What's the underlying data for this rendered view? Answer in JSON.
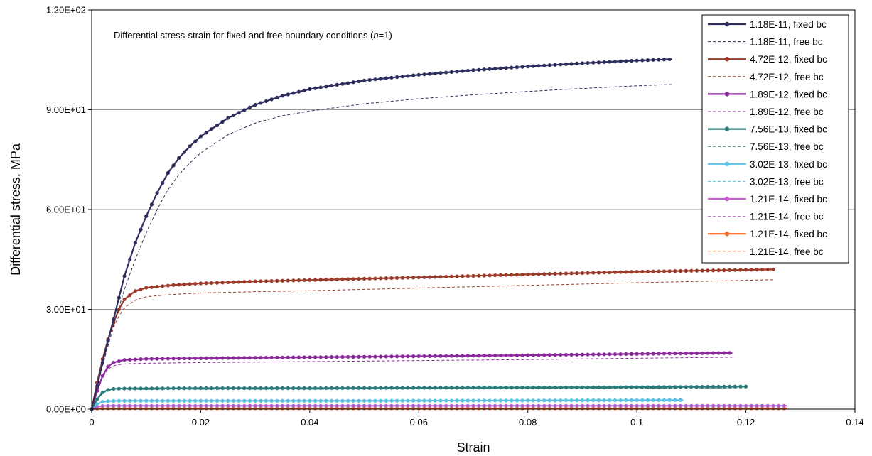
{
  "chart_data": {
    "type": "line",
    "annotation_prefix": "Differential stress-strain for fixed and free boundary conditions (",
    "annotation_italic": "n",
    "annotation_suffix": "=1)",
    "xlabel": "Strain",
    "ylabel": "Differential stress, MPa",
    "xlim": [
      0,
      0.14
    ],
    "ylim": [
      0,
      120
    ],
    "x_ticks": [
      "0",
      "0.02",
      "0.04",
      "0.06",
      "0.08",
      "0.1",
      "0.12",
      "0.14"
    ],
    "y_ticks": [
      "0.00E+00",
      "3.00E+01",
      "6.00E+01",
      "9.00E+01",
      "1.20E+02"
    ],
    "grid": "horizontal",
    "legend_position": "top-right",
    "series": [
      {
        "name": "1.18E-11, fixed bc",
        "style": "solid-markers",
        "color": "#2e2e5e",
        "x_end": 0.1065,
        "points": [
          [
            0,
            0
          ],
          [
            0.002,
            14
          ],
          [
            0.004,
            27
          ],
          [
            0.006,
            40
          ],
          [
            0.008,
            50
          ],
          [
            0.01,
            58
          ],
          [
            0.012,
            65
          ],
          [
            0.014,
            71
          ],
          [
            0.016,
            75.5
          ],
          [
            0.018,
            79
          ],
          [
            0.02,
            82
          ],
          [
            0.025,
            87.5
          ],
          [
            0.03,
            91.5
          ],
          [
            0.035,
            94.2
          ],
          [
            0.04,
            96.2
          ],
          [
            0.05,
            98.8
          ],
          [
            0.06,
            100.5
          ],
          [
            0.07,
            101.9
          ],
          [
            0.08,
            103
          ],
          [
            0.09,
            104
          ],
          [
            0.1,
            104.8
          ],
          [
            0.1065,
            105.2
          ]
        ]
      },
      {
        "name": "1.18E-11, free bc",
        "style": "dashed",
        "color": "#2e2e5e",
        "x_end": 0.1065,
        "points": [
          [
            0,
            0
          ],
          [
            0.002,
            13
          ],
          [
            0.004,
            25
          ],
          [
            0.006,
            36
          ],
          [
            0.008,
            45
          ],
          [
            0.01,
            53
          ],
          [
            0.012,
            60
          ],
          [
            0.014,
            66
          ],
          [
            0.016,
            70.5
          ],
          [
            0.018,
            74
          ],
          [
            0.02,
            77
          ],
          [
            0.025,
            82.5
          ],
          [
            0.03,
            86
          ],
          [
            0.035,
            88.2
          ],
          [
            0.04,
            89.6
          ],
          [
            0.05,
            91.8
          ],
          [
            0.06,
            93.3
          ],
          [
            0.07,
            94.5
          ],
          [
            0.08,
            95.5
          ],
          [
            0.09,
            96.4
          ],
          [
            0.1,
            97.2
          ],
          [
            0.1065,
            97.6
          ]
        ]
      },
      {
        "name": "4.72E-12, fixed bc",
        "style": "solid-markers",
        "color": "#9a3a2a",
        "x_end": 0.125,
        "points": [
          [
            0,
            0
          ],
          [
            0.001,
            8
          ],
          [
            0.002,
            15
          ],
          [
            0.003,
            21
          ],
          [
            0.004,
            26
          ],
          [
            0.005,
            30
          ],
          [
            0.006,
            33
          ],
          [
            0.008,
            35.5
          ],
          [
            0.01,
            36.5
          ],
          [
            0.015,
            37.3
          ],
          [
            0.02,
            37.8
          ],
          [
            0.03,
            38.4
          ],
          [
            0.04,
            38.8
          ],
          [
            0.06,
            39.6
          ],
          [
            0.08,
            40.5
          ],
          [
            0.1,
            41.3
          ],
          [
            0.125,
            42
          ]
        ]
      },
      {
        "name": "4.72E-12, free bc",
        "style": "dashed",
        "color": "#9a3a2a",
        "x_end": 0.125,
        "points": [
          [
            0,
            0
          ],
          [
            0.001,
            7
          ],
          [
            0.002,
            14
          ],
          [
            0.003,
            19.5
          ],
          [
            0.004,
            24.5
          ],
          [
            0.005,
            28
          ],
          [
            0.006,
            30.5
          ],
          [
            0.008,
            32.8
          ],
          [
            0.01,
            33.8
          ],
          [
            0.015,
            34.5
          ],
          [
            0.02,
            34.9
          ],
          [
            0.03,
            35.3
          ],
          [
            0.04,
            35.6
          ],
          [
            0.06,
            36.4
          ],
          [
            0.08,
            37.2
          ],
          [
            0.1,
            38
          ],
          [
            0.125,
            38.9
          ]
        ]
      },
      {
        "name": "1.89E-12, fixed bc",
        "style": "solid-markers",
        "color": "#8a2a9a",
        "x_end": 0.1175,
        "points": [
          [
            0,
            0
          ],
          [
            0.001,
            5.5
          ],
          [
            0.002,
            10
          ],
          [
            0.003,
            12.8
          ],
          [
            0.004,
            14
          ],
          [
            0.006,
            14.8
          ],
          [
            0.01,
            15.1
          ],
          [
            0.02,
            15.3
          ],
          [
            0.04,
            15.6
          ],
          [
            0.06,
            15.9
          ],
          [
            0.08,
            16.2
          ],
          [
            0.1,
            16.6
          ],
          [
            0.1175,
            16.9
          ]
        ]
      },
      {
        "name": "1.89E-12, free bc",
        "style": "dashed",
        "color": "#8a2a9a",
        "x_end": 0.1175,
        "points": [
          [
            0,
            0
          ],
          [
            0.001,
            5
          ],
          [
            0.002,
            9.5
          ],
          [
            0.003,
            12
          ],
          [
            0.004,
            13.1
          ],
          [
            0.006,
            13.6
          ],
          [
            0.01,
            13.8
          ],
          [
            0.02,
            14
          ],
          [
            0.04,
            14.3
          ],
          [
            0.06,
            14.6
          ],
          [
            0.08,
            14.9
          ],
          [
            0.1,
            15.3
          ],
          [
            0.1175,
            15.6
          ]
        ]
      },
      {
        "name": "7.56E-13, fixed bc",
        "style": "solid-markers",
        "color": "#2a7a7a",
        "x_end": 0.12,
        "points": [
          [
            0,
            0
          ],
          [
            0.001,
            3
          ],
          [
            0.002,
            5
          ],
          [
            0.003,
            5.8
          ],
          [
            0.004,
            6.1
          ],
          [
            0.006,
            6.2
          ],
          [
            0.02,
            6.3
          ],
          [
            0.04,
            6.3
          ],
          [
            0.06,
            6.4
          ],
          [
            0.08,
            6.5
          ],
          [
            0.1,
            6.6
          ],
          [
            0.12,
            6.8
          ]
        ]
      },
      {
        "name": "7.56E-13, free bc",
        "style": "dashed",
        "color": "#2a7a7a",
        "x_end": 0.12,
        "points": [
          [
            0,
            0
          ],
          [
            0.001,
            2.8
          ],
          [
            0.002,
            4.8
          ],
          [
            0.003,
            5.5
          ],
          [
            0.004,
            5.8
          ],
          [
            0.006,
            5.9
          ],
          [
            0.02,
            6
          ],
          [
            0.04,
            6
          ],
          [
            0.06,
            6.1
          ],
          [
            0.08,
            6.2
          ],
          [
            0.1,
            6.3
          ],
          [
            0.12,
            6.4
          ]
        ]
      },
      {
        "name": "3.02E-13, fixed bc",
        "style": "solid-markers",
        "color": "#5bc0e0",
        "x_end": 0.1085,
        "points": [
          [
            0,
            0
          ],
          [
            0.001,
            1.5
          ],
          [
            0.002,
            2.2
          ],
          [
            0.003,
            2.4
          ],
          [
            0.005,
            2.5
          ],
          [
            0.02,
            2.5
          ],
          [
            0.05,
            2.5
          ],
          [
            0.08,
            2.6
          ],
          [
            0.1085,
            2.7
          ]
        ]
      },
      {
        "name": "3.02E-13, free bc",
        "style": "dashed",
        "color": "#5bc0e0",
        "x_end": 0.1085,
        "points": [
          [
            0,
            0
          ],
          [
            0.001,
            1.4
          ],
          [
            0.002,
            2.1
          ],
          [
            0.003,
            2.3
          ],
          [
            0.005,
            2.4
          ],
          [
            0.02,
            2.4
          ],
          [
            0.05,
            2.4
          ],
          [
            0.08,
            2.5
          ],
          [
            0.1085,
            2.6
          ]
        ]
      },
      {
        "name": "1.21E-14, fixed bc",
        "style": "solid-markers",
        "color": "#c060c8",
        "x_end": 0.1275,
        "points": [
          [
            0,
            0
          ],
          [
            0.001,
            0.7
          ],
          [
            0.002,
            0.95
          ],
          [
            0.004,
            1
          ],
          [
            0.02,
            1
          ],
          [
            0.06,
            1
          ],
          [
            0.1,
            1
          ],
          [
            0.1275,
            1
          ]
        ]
      },
      {
        "name": "1.21E-14, free bc",
        "style": "dashed",
        "color": "#c060c8",
        "x_end": 0.1275,
        "points": [
          [
            0,
            0
          ],
          [
            0.001,
            0.6
          ],
          [
            0.002,
            0.85
          ],
          [
            0.004,
            0.9
          ],
          [
            0.02,
            0.9
          ],
          [
            0.06,
            0.9
          ],
          [
            0.1,
            0.9
          ],
          [
            0.1275,
            0.9
          ]
        ]
      },
      {
        "name": "1.21E-14, fixed bc",
        "style": "solid-markers",
        "color": "#f26a2a",
        "x_end": 0.1275,
        "points": [
          [
            0,
            0
          ],
          [
            0.001,
            0.15
          ],
          [
            0.002,
            0.2
          ],
          [
            0.01,
            0.2
          ],
          [
            0.06,
            0.2
          ],
          [
            0.1275,
            0.2
          ]
        ]
      },
      {
        "name": "1.21E-14, free bc",
        "style": "dashed",
        "color": "#f26a2a",
        "x_end": 0.1275,
        "points": [
          [
            0,
            0
          ],
          [
            0.001,
            0.12
          ],
          [
            0.002,
            0.18
          ],
          [
            0.01,
            0.18
          ],
          [
            0.06,
            0.18
          ],
          [
            0.1275,
            0.18
          ]
        ]
      }
    ]
  }
}
